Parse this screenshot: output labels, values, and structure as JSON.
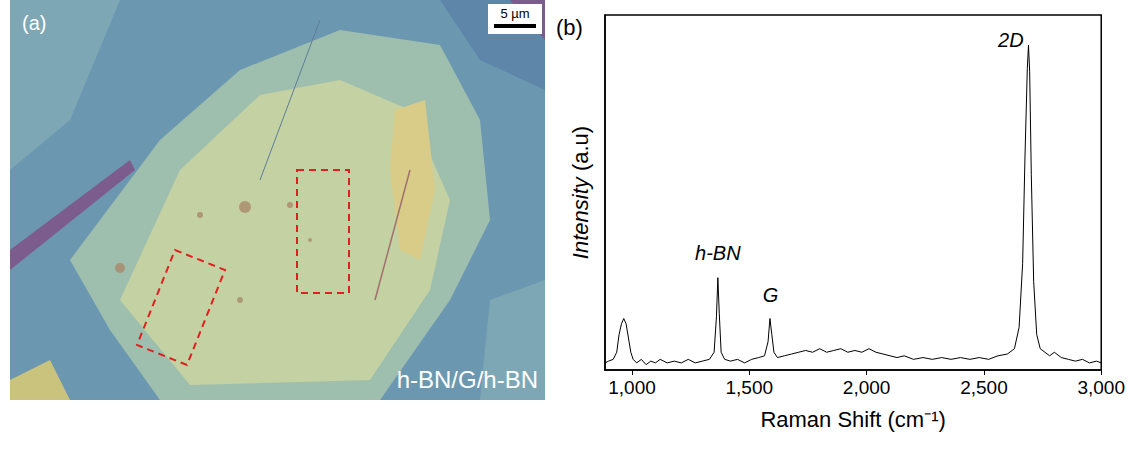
{
  "image_panel": {
    "label": "(a)",
    "scale_bar": "5 µm",
    "caption": "h-BN/G/h-BN"
  },
  "chart_data": {
    "panel_label": "(b)",
    "type": "line",
    "x_label": "Raman Shift (cm⁻¹)",
    "y_label": "Intensity (a.u)",
    "color": "#000000",
    "x": [
      885,
      900,
      920,
      935,
      945,
      955,
      965,
      975,
      985,
      995,
      1005,
      1020,
      1040,
      1060,
      1080,
      1100,
      1120,
      1150,
      1180,
      1210,
      1240,
      1270,
      1300,
      1330,
      1350,
      1360,
      1366,
      1372,
      1380,
      1395,
      1420,
      1450,
      1480,
      1510,
      1540,
      1565,
      1580,
      1588,
      1596,
      1605,
      1620,
      1650,
      1680,
      1710,
      1740,
      1770,
      1800,
      1830,
      1860,
      1890,
      1920,
      1950,
      1980,
      2010,
      2040,
      2070,
      2100,
      2130,
      2160,
      2200,
      2240,
      2280,
      2320,
      2360,
      2400,
      2440,
      2480,
      2520,
      2560,
      2600,
      2630,
      2650,
      2665,
      2675,
      2685,
      2690,
      2695,
      2702,
      2712,
      2725,
      2740,
      2760,
      2780,
      2800,
      2830,
      2860,
      2890,
      2920,
      2950,
      2980,
      3000
    ],
    "values": [
      2,
      2.5,
      3,
      5,
      10,
      13,
      14.5,
      13,
      9,
      5,
      3,
      2,
      3,
      1.5,
      2.5,
      2,
      3,
      2,
      2.5,
      2,
      3,
      2,
      2.5,
      3,
      5,
      15,
      26,
      16,
      5,
      3,
      2.5,
      3,
      2,
      3,
      3.5,
      4,
      8,
      14.5,
      10,
      5,
      3.5,
      4,
      4.5,
      5,
      5.5,
      5,
      6,
      5,
      5.5,
      6,
      5,
      5.5,
      5,
      6,
      5,
      4.5,
      4,
      3.5,
      4,
      3,
      3.5,
      3,
      3.5,
      3,
      3.5,
      3,
      3.5,
      3,
      4,
      4.5,
      6,
      12,
      30,
      60,
      85,
      91.5,
      84,
      55,
      25,
      10,
      6,
      5,
      4,
      5,
      3.5,
      3,
      2.5,
      3,
      2,
      2.5,
      2
    ],
    "xlim": [
      885,
      3000
    ],
    "xticks": [
      1000,
      1500,
      2000,
      2500,
      3000
    ],
    "ylim": [
      0,
      100
    ],
    "yticks": [],
    "tick_labels": "x",
    "annotations": [
      {
        "text": "h-BN",
        "x": 1366,
        "y": 33
      },
      {
        "text": "G",
        "x": 1590,
        "y": 21
      },
      {
        "text": "2D",
        "x": 2615,
        "y": 93
      }
    ]
  }
}
